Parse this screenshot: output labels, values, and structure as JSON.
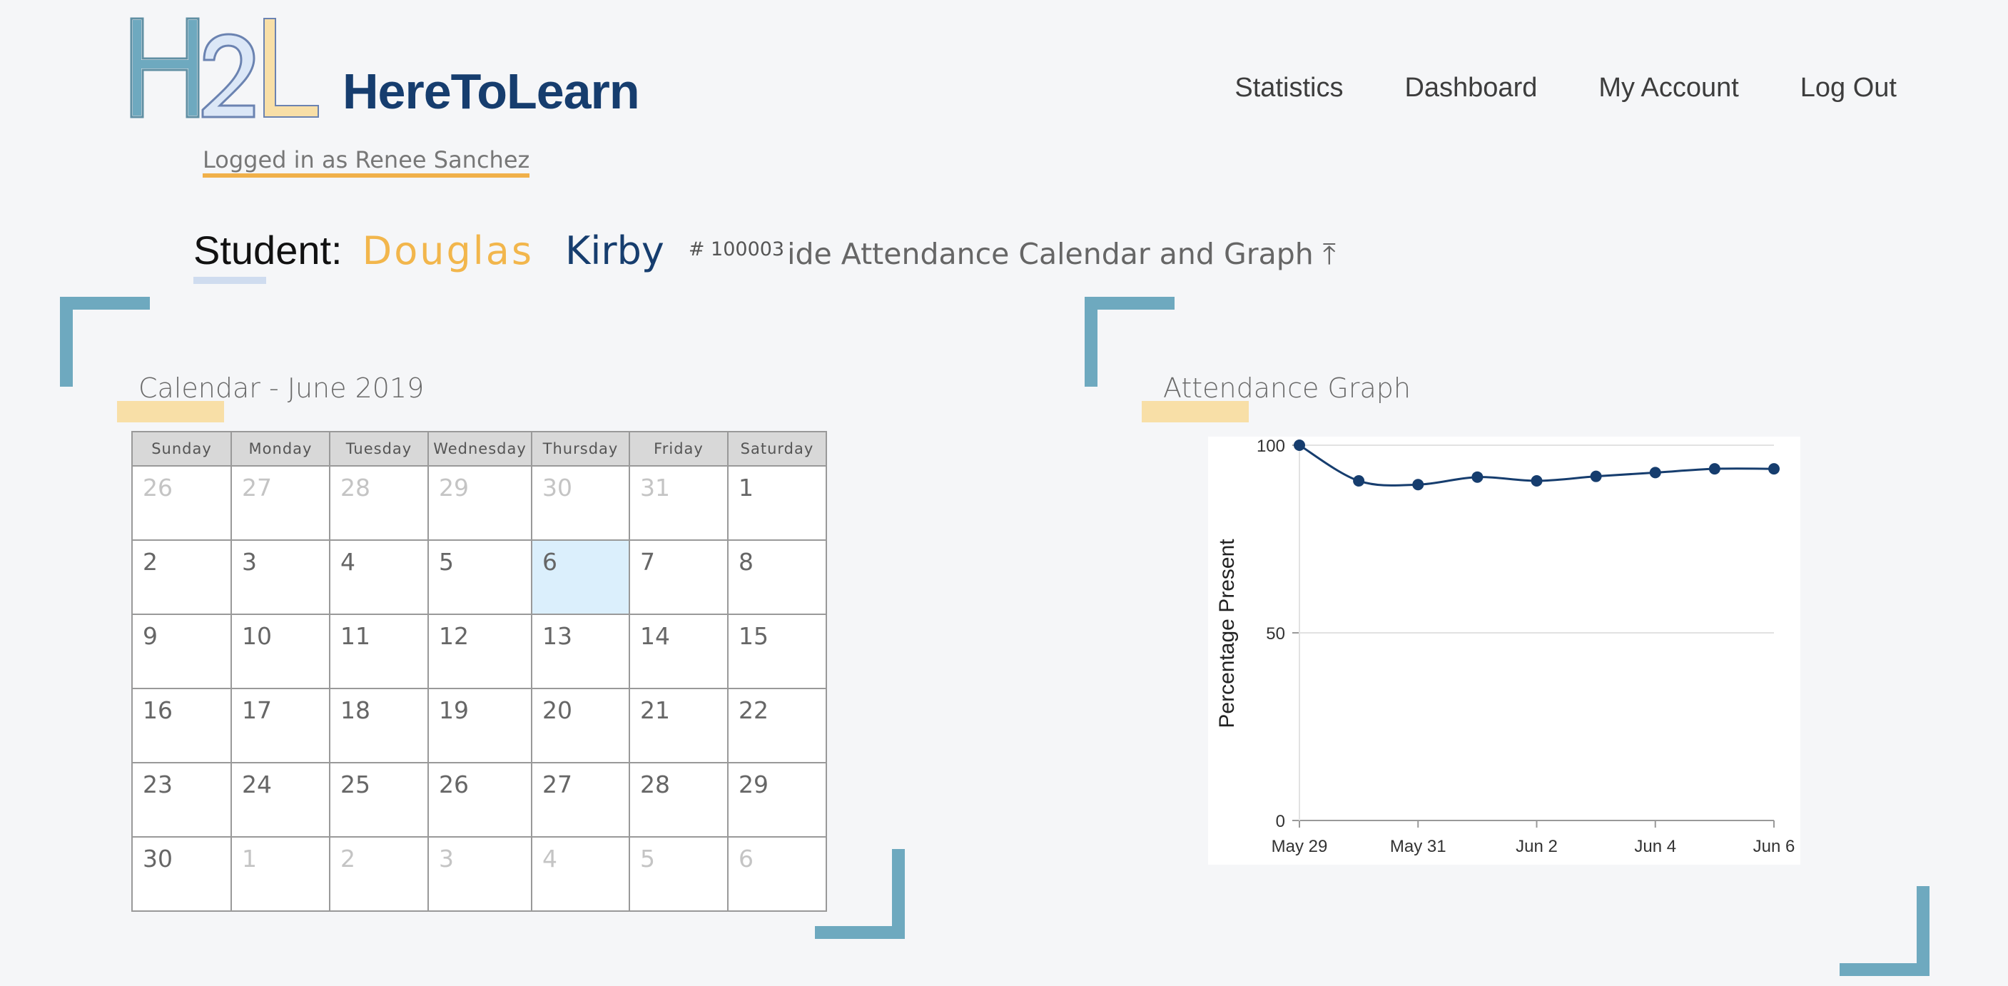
{
  "header": {
    "logo_text": "H2L",
    "brand": "HereToLearn",
    "nav": [
      "Statistics",
      "Dashboard",
      "My Account",
      "Log Out"
    ],
    "logged_in": "Logged in as Renee Sanchez"
  },
  "student": {
    "label": "Student:",
    "first_name": "Douglas",
    "last_name": "Kirby",
    "id": "# 100003",
    "toggle_label": "ide Attendance Calendar and Graph ⤒"
  },
  "calendar": {
    "title": "Calendar - June 2019",
    "weekdays": [
      "Sunday",
      "Monday",
      "Tuesday",
      "Wednesday",
      "Thursday",
      "Friday",
      "Saturday"
    ],
    "weeks": [
      [
        {
          "d": "26",
          "o": true
        },
        {
          "d": "27",
          "o": true
        },
        {
          "d": "28",
          "o": true
        },
        {
          "d": "29",
          "o": true
        },
        {
          "d": "30",
          "o": true
        },
        {
          "d": "31",
          "o": true
        },
        {
          "d": "1"
        }
      ],
      [
        {
          "d": "2"
        },
        {
          "d": "3"
        },
        {
          "d": "4"
        },
        {
          "d": "5"
        },
        {
          "d": "6",
          "today": true
        },
        {
          "d": "7"
        },
        {
          "d": "8"
        }
      ],
      [
        {
          "d": "9"
        },
        {
          "d": "10"
        },
        {
          "d": "11"
        },
        {
          "d": "12"
        },
        {
          "d": "13"
        },
        {
          "d": "14"
        },
        {
          "d": "15"
        }
      ],
      [
        {
          "d": "16"
        },
        {
          "d": "17"
        },
        {
          "d": "18"
        },
        {
          "d": "19"
        },
        {
          "d": "20"
        },
        {
          "d": "21"
        },
        {
          "d": "22"
        }
      ],
      [
        {
          "d": "23"
        },
        {
          "d": "24"
        },
        {
          "d": "25"
        },
        {
          "d": "26"
        },
        {
          "d": "27"
        },
        {
          "d": "28"
        },
        {
          "d": "29"
        }
      ],
      [
        {
          "d": "30"
        },
        {
          "d": "1",
          "o": true
        },
        {
          "d": "2",
          "o": true
        },
        {
          "d": "3",
          "o": true
        },
        {
          "d": "4",
          "o": true
        },
        {
          "d": "5",
          "o": true
        },
        {
          "d": "6",
          "o": true
        }
      ]
    ]
  },
  "graph": {
    "title": "Attendance Graph"
  },
  "chart_data": {
    "type": "line",
    "title": "",
    "xlabel": "",
    "ylabel": "Percentage Present",
    "ylim": [
      0,
      100
    ],
    "yticks": [
      0,
      50,
      100
    ],
    "x_tick_labels": [
      "May 29",
      "May 31",
      "Jun 2",
      "Jun 4",
      "Jun 6"
    ],
    "x": [
      "May 29",
      "May 30",
      "May 31",
      "Jun 1",
      "Jun 2",
      "Jun 3",
      "Jun 4",
      "Jun 5",
      "Jun 6"
    ],
    "values": [
      100,
      90.5,
      89.5,
      91.5,
      90.5,
      91.7,
      92.7,
      93.7,
      93.7
    ],
    "line_color": "#163d6e",
    "grid": true,
    "legend": "none"
  }
}
